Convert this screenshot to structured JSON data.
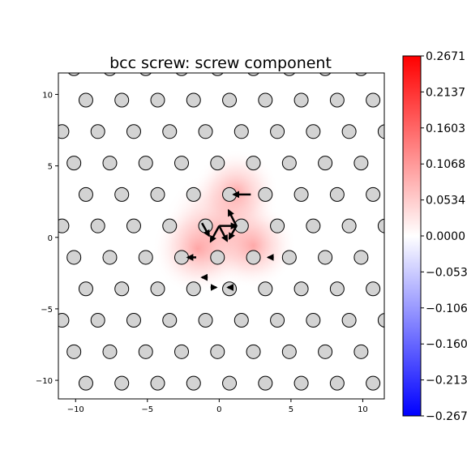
{
  "chart_data": {
    "type": "scatter",
    "title": "bcc screw: screw component",
    "xlabel": "",
    "ylabel": "",
    "xlim": [
      -11.2,
      11.5
    ],
    "ylim": [
      -11.3,
      11.5
    ],
    "x_ticks": [
      -10,
      -5,
      0,
      5,
      10
    ],
    "y_ticks": [
      10,
      5,
      0,
      -5,
      -10
    ],
    "x_tick_labels": [
      "−10",
      "−5",
      "0",
      "5",
      "10"
    ],
    "y_tick_labels": [
      "10",
      "5",
      "0",
      "−5",
      "−10"
    ],
    "grid": false,
    "colormap": "bwr",
    "colorbar": {
      "vmin": -0.2671,
      "vmax": 0.2671,
      "tick_labels": [
        "0.2671",
        "0.2137",
        "0.1603",
        "0.1068",
        "0.0534",
        "0.0000",
        "−0.0534",
        "−0.1068",
        "−0.1603",
        "−0.2137",
        "−0.2671"
      ],
      "tick_values": [
        0.2671,
        0.2137,
        0.1603,
        0.1068,
        0.0534,
        0.0,
        -0.0534,
        -0.1068,
        -0.1603,
        -0.2137,
        -0.2671
      ]
    },
    "atom_color": "#d3d3d3",
    "lattice": {
      "a": 2.5,
      "row_spacing": 2.2,
      "stagger": 1.25
    },
    "arrows": [
      {
        "x": 0.0,
        "y": 0.8,
        "dx": 1.2,
        "dy": 0.0
      },
      {
        "x": 1.2,
        "y": 0.8,
        "dx": -0.55,
        "dy": 1.1
      },
      {
        "x": 0.0,
        "y": 0.8,
        "dx": 0.55,
        "dy": -1.05
      },
      {
        "x": 0.0,
        "y": 0.8,
        "dx": -0.6,
        "dy": -1.1
      },
      {
        "x": -1.2,
        "y": 1.0,
        "dx": 0.5,
        "dy": -0.9
      },
      {
        "x": 1.2,
        "y": 0.8,
        "dx": -0.5,
        "dy": -0.9
      },
      {
        "x": 2.2,
        "y": 3.0,
        "dx": -1.2,
        "dy": 0.0
      },
      {
        "x": -1.6,
        "y": -1.4,
        "dx": -0.6,
        "dy": 0.0
      },
      {
        "x": -0.8,
        "y": -2.8,
        "dx": -0.4,
        "dy": 0.0
      },
      {
        "x": -0.6,
        "y": -3.5,
        "dx": 0.4,
        "dy": 0.0
      },
      {
        "x": 1.0,
        "y": -3.5,
        "dx": -0.4,
        "dy": 0.0
      },
      {
        "x": 3.8,
        "y": -1.4,
        "dx": -0.4,
        "dy": 0.0
      }
    ]
  }
}
